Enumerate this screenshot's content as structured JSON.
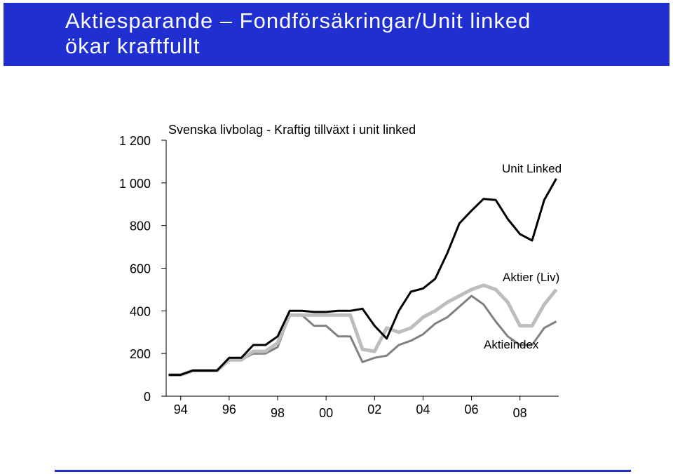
{
  "slide_title": "Aktiesparande  – Fondförsäkringar/Unit linked\nökar kraftfullt",
  "chart_data": {
    "type": "line",
    "title": "Svenska livbolag - Kraftig tillväxt i unit linked",
    "x": [
      1993.5,
      1994,
      1994.5,
      1995,
      1995.5,
      1996,
      1996.5,
      1997,
      1997.5,
      1998,
      1998.5,
      1999,
      1999.5,
      2000,
      2000.5,
      2001,
      2001.5,
      2002,
      2002.5,
      2003,
      2003.5,
      2004,
      2004.5,
      2005,
      2005.5,
      2006,
      2006.5,
      2007,
      2007.5,
      2008,
      2008.5,
      2009,
      2009.5
    ],
    "series": [
      {
        "name": "Aktieindex",
        "color": "#808080",
        "values": [
          100,
          100,
          120,
          120,
          120,
          170,
          170,
          200,
          200,
          230,
          380,
          380,
          330,
          330,
          280,
          280,
          160,
          180,
          190,
          240,
          260,
          290,
          340,
          370,
          420,
          470,
          430,
          350,
          280,
          240,
          240,
          320,
          350
        ]
      },
      {
        "name": "Aktier (Liv)",
        "color": "#bdbdbd",
        "values": [
          100,
          100,
          120,
          120,
          120,
          170,
          170,
          210,
          210,
          250,
          380,
          380,
          380,
          380,
          380,
          380,
          220,
          210,
          320,
          300,
          320,
          370,
          400,
          440,
          470,
          500,
          520,
          500,
          440,
          330,
          330,
          430,
          500
        ]
      },
      {
        "name": "Unit Linked",
        "color": "#000000",
        "values": [
          100,
          100,
          120,
          120,
          120,
          180,
          180,
          240,
          240,
          280,
          400,
          400,
          395,
          395,
          400,
          400,
          410,
          330,
          270,
          400,
          490,
          505,
          550,
          670,
          810,
          870,
          925,
          920,
          830,
          760,
          730,
          920,
          1020
        ]
      }
    ],
    "xlim": [
      1993.4,
      2009.6
    ],
    "xticks": [
      {
        "value": 1994,
        "label": "94"
      },
      {
        "value": 1996,
        "label": "96"
      },
      {
        "value": 1998,
        "label": "98"
      },
      {
        "value": 2000,
        "label": "00"
      },
      {
        "value": 2002,
        "label": "02"
      },
      {
        "value": 2004,
        "label": "04"
      },
      {
        "value": 2006,
        "label": "06"
      },
      {
        "value": 2008,
        "label": "08"
      }
    ],
    "ylim": [
      0,
      1200
    ],
    "yticks": [
      0,
      200,
      400,
      600,
      {
        "value": 800,
        "label": "800"
      },
      {
        "value": 1000,
        "label": "1 000"
      },
      {
        "value": 1200,
        "label": "1 200"
      }
    ],
    "grid": false
  }
}
